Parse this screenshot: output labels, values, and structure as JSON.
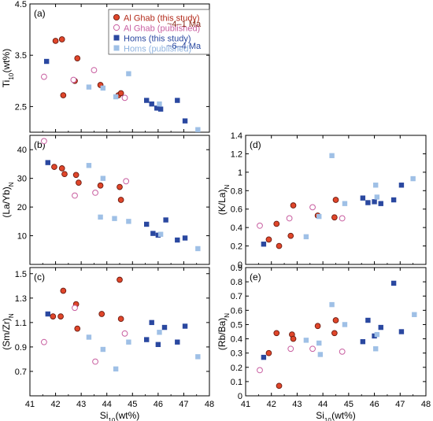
{
  "legend": {
    "entries": [
      {
        "label": "Al Ghab (this study)",
        "color": "#b32a1a",
        "marker": "circle-filled"
      },
      {
        "label": "Al Ghab (published)",
        "color": "#c85ea0",
        "marker": "circle-open"
      },
      {
        "label": "Homs (this study)",
        "color": "#2a48a0",
        "marker": "square-filled"
      },
      {
        "label": "Homs (published)",
        "color": "#8fb3df",
        "marker": "square-filled"
      }
    ],
    "age_alghab": "~4–1 Ma",
    "age_homs": "~6–4 Ma",
    "age_alghab_color": "#8a2a1a",
    "age_homs_color": "#2a48a0"
  },
  "colors": {
    "alghab_fill": "#e0462a",
    "alghab_edge": "#6a1a10",
    "alghab_pub": "#c85ea0",
    "homs": "#2a48a0",
    "homs_pub": "#9fc0e6"
  },
  "chart_data": [
    {
      "id": "a",
      "panel_label": "(a)",
      "type": "scatter",
      "ylabel": "Ti10 (wt%)",
      "xlim": [
        41,
        48
      ],
      "ylim": [
        2.0,
        4.5
      ],
      "yticks": [
        2.5,
        3.5,
        4.5
      ],
      "xticks": [
        41,
        42,
        43,
        44,
        45,
        46,
        47,
        48
      ],
      "show_xticklabels": false,
      "xlabel": "",
      "series": [
        {
          "name": "Al Ghab (this study)",
          "points": [
            [
              42.0,
              3.78
            ],
            [
              42.25,
              3.81
            ],
            [
              42.3,
              2.72
            ],
            [
              42.75,
              3.0
            ],
            [
              42.85,
              3.44
            ],
            [
              43.75,
              2.92
            ],
            [
              44.45,
              2.72
            ],
            [
              44.55,
              2.76
            ]
          ]
        },
        {
          "name": "Al Ghab (published)",
          "points": [
            [
              41.55,
              3.08
            ],
            [
              42.7,
              3.02
            ],
            [
              43.5,
              3.21
            ],
            [
              44.7,
              2.67
            ]
          ]
        },
        {
          "name": "Homs (this study)",
          "points": [
            [
              41.65,
              3.38
            ],
            [
              45.55,
              2.62
            ],
            [
              45.75,
              2.55
            ],
            [
              45.95,
              2.47
            ],
            [
              46.1,
              2.45
            ],
            [
              46.75,
              2.62
            ],
            [
              47.05,
              2.22
            ]
          ]
        },
        {
          "name": "Homs (published)",
          "points": [
            [
              43.3,
              2.88
            ],
            [
              43.85,
              2.86
            ],
            [
              44.35,
              2.69
            ],
            [
              44.85,
              3.14
            ],
            [
              46.05,
              2.55
            ],
            [
              47.55,
              2.05
            ]
          ]
        }
      ]
    },
    {
      "id": "b",
      "panel_label": "(b)",
      "type": "scatter",
      "ylabel": "(La/Yb)N",
      "xlim": [
        41,
        48
      ],
      "ylim": [
        0,
        45
      ],
      "yticks": [
        10,
        20,
        30,
        40
      ],
      "xticks": [
        41,
        42,
        43,
        44,
        45,
        46,
        47,
        48
      ],
      "show_xticklabels": false,
      "xlabel": "",
      "series": [
        {
          "name": "Al Ghab (this study)",
          "points": [
            [
              41.95,
              34
            ],
            [
              42.25,
              33.5
            ],
            [
              42.35,
              31.5
            ],
            [
              42.8,
              31.2
            ],
            [
              42.9,
              28.5
            ],
            [
              43.75,
              27.5
            ],
            [
              44.5,
              27.0
            ],
            [
              44.55,
              22.5
            ]
          ]
        },
        {
          "name": "Al Ghab (published)",
          "points": [
            [
              41.55,
              43
            ],
            [
              42.75,
              24
            ],
            [
              43.55,
              25
            ],
            [
              44.75,
              29
            ]
          ]
        },
        {
          "name": "Homs (this study)",
          "points": [
            [
              41.7,
              35.5
            ],
            [
              45.55,
              14
            ],
            [
              45.8,
              10.8
            ],
            [
              46.0,
              10.2
            ],
            [
              46.3,
              15.5
            ],
            [
              46.75,
              8.5
            ],
            [
              47.05,
              9.2
            ]
          ]
        },
        {
          "name": "Homs (published)",
          "points": [
            [
              43.3,
              34.5
            ],
            [
              43.75,
              16.5
            ],
            [
              43.85,
              30
            ],
            [
              44.3,
              16
            ],
            [
              44.85,
              15
            ],
            [
              46.1,
              10.5
            ],
            [
              47.55,
              5.5
            ]
          ]
        }
      ]
    },
    {
      "id": "c",
      "panel_label": "(c)",
      "type": "scatter",
      "ylabel": "(Sm/Zr)N",
      "xlim": [
        41,
        48
      ],
      "ylim": [
        0.5,
        1.55
      ],
      "yticks": [
        0.7,
        0.9,
        1.1,
        1.3,
        1.5
      ],
      "xticks": [
        41,
        42,
        43,
        44,
        45,
        46,
        47,
        48
      ],
      "show_xticklabels": true,
      "xlabel": "Si10 (wt%)",
      "series": [
        {
          "name": "Al Ghab (this study)",
          "points": [
            [
              41.9,
              1.15
            ],
            [
              42.2,
              1.15
            ],
            [
              42.3,
              1.36
            ],
            [
              42.8,
              1.25
            ],
            [
              42.85,
              1.05
            ],
            [
              43.8,
              1.17
            ],
            [
              44.5,
              1.45
            ],
            [
              44.55,
              1.13
            ]
          ]
        },
        {
          "name": "Al Ghab (published)",
          "points": [
            [
              41.55,
              0.94
            ],
            [
              42.75,
              1.22
            ],
            [
              43.55,
              0.78
            ],
            [
              44.7,
              1.01
            ]
          ]
        },
        {
          "name": "Homs (this study)",
          "points": [
            [
              41.7,
              1.17
            ],
            [
              45.55,
              0.96
            ],
            [
              45.75,
              1.1
            ],
            [
              46.0,
              0.92
            ],
            [
              46.25,
              1.06
            ],
            [
              46.75,
              0.94
            ],
            [
              47.05,
              1.07
            ]
          ]
        },
        {
          "name": "Homs (published)",
          "points": [
            [
              43.3,
              0.98
            ],
            [
              43.85,
              0.88
            ],
            [
              44.35,
              0.72
            ],
            [
              44.85,
              0.94
            ],
            [
              46.05,
              1.02
            ],
            [
              47.55,
              0.82
            ]
          ]
        }
      ]
    },
    {
      "id": "d",
      "panel_label": "(d)",
      "type": "scatter",
      "ylabel": "(K/La)N",
      "xlim": [
        41,
        48
      ],
      "ylim": [
        0,
        1.4
      ],
      "yticks": [
        0,
        0.2,
        0.4,
        0.6,
        0.8,
        1.0,
        1.2,
        1.4
      ],
      "xticks": [
        41,
        42,
        43,
        44,
        45,
        46,
        47,
        48
      ],
      "show_xticklabels": false,
      "xlabel": "",
      "series": [
        {
          "name": "Al Ghab (this study)",
          "points": [
            [
              41.9,
              0.27
            ],
            [
              42.2,
              0.44
            ],
            [
              42.3,
              0.2
            ],
            [
              42.75,
              0.31
            ],
            [
              42.85,
              0.64
            ],
            [
              43.8,
              0.53
            ],
            [
              44.45,
              0.51
            ],
            [
              44.5,
              0.7
            ]
          ]
        },
        {
          "name": "Al Ghab (published)",
          "points": [
            [
              41.55,
              0.42
            ],
            [
              42.7,
              0.5
            ],
            [
              43.6,
              0.62
            ],
            [
              44.75,
              0.5
            ]
          ]
        },
        {
          "name": "Homs (this study)",
          "points": [
            [
              41.7,
              0.22
            ],
            [
              45.55,
              0.72
            ],
            [
              45.75,
              0.67
            ],
            [
              46.0,
              0.68
            ],
            [
              46.25,
              0.66
            ],
            [
              46.75,
              0.7
            ],
            [
              47.05,
              0.86
            ]
          ]
        },
        {
          "name": "Homs (published)",
          "points": [
            [
              43.35,
              0.3
            ],
            [
              43.85,
              0.52
            ],
            [
              44.35,
              1.18
            ],
            [
              44.85,
              0.66
            ],
            [
              46.05,
              0.86
            ],
            [
              46.1,
              0.73
            ],
            [
              47.5,
              0.93
            ]
          ]
        }
      ]
    },
    {
      "id": "e",
      "panel_label": "(e)",
      "type": "scatter",
      "ylabel": "(Rb/Ba)N",
      "xlim": [
        41,
        48
      ],
      "ylim": [
        0,
        0.9
      ],
      "yticks": [
        0,
        0.1,
        0.2,
        0.3,
        0.4,
        0.5,
        0.6,
        0.7,
        0.8,
        0.9
      ],
      "xticks": [
        41,
        42,
        43,
        44,
        45,
        46,
        47,
        48
      ],
      "show_xticklabels": true,
      "xlabel": "Si10 (wt%)",
      "series": [
        {
          "name": "Al Ghab (this study)",
          "points": [
            [
              41.9,
              0.3
            ],
            [
              42.2,
              0.44
            ],
            [
              42.3,
              0.07
            ],
            [
              42.8,
              0.43
            ],
            [
              42.85,
              0.4
            ],
            [
              43.8,
              0.49
            ],
            [
              44.45,
              0.44
            ],
            [
              44.5,
              0.53
            ]
          ]
        },
        {
          "name": "Al Ghab (published)",
          "points": [
            [
              41.55,
              0.18
            ],
            [
              42.75,
              0.33
            ],
            [
              43.6,
              0.33
            ],
            [
              44.75,
              0.31
            ]
          ]
        },
        {
          "name": "Homs (this study)",
          "points": [
            [
              41.7,
              0.27
            ],
            [
              45.55,
              0.38
            ],
            [
              45.75,
              0.53
            ],
            [
              46.0,
              0.42
            ],
            [
              46.25,
              0.48
            ],
            [
              46.75,
              0.79
            ],
            [
              47.05,
              0.45
            ]
          ]
        },
        {
          "name": "Homs (published)",
          "points": [
            [
              43.35,
              0.39
            ],
            [
              43.85,
              0.37
            ],
            [
              43.9,
              0.29
            ],
            [
              44.35,
              0.64
            ],
            [
              44.85,
              0.5
            ],
            [
              46.05,
              0.33
            ],
            [
              46.1,
              0.43
            ],
            [
              47.55,
              0.57
            ]
          ]
        }
      ]
    }
  ]
}
